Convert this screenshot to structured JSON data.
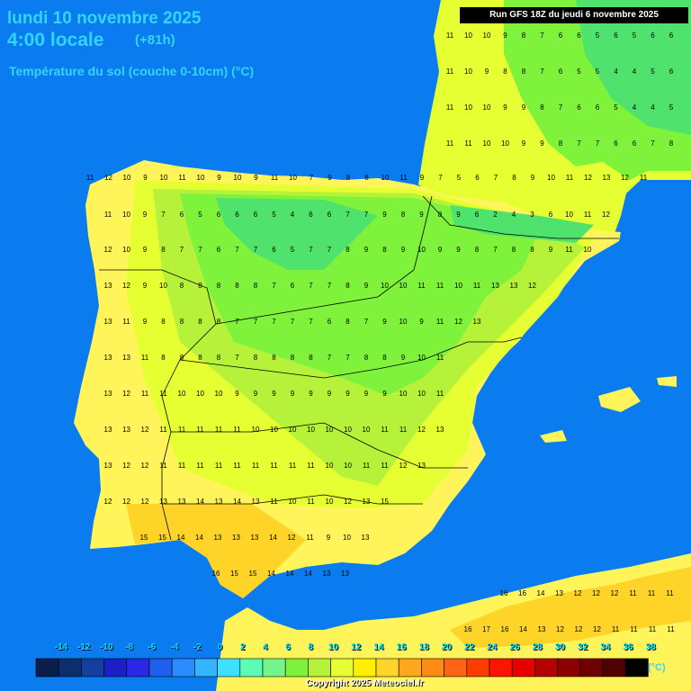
{
  "header": {
    "date_line": "lundi 10 novembre 2025",
    "time_line": "4:00 locale",
    "offset": "(+81h)",
    "variable": "Température du sol (couche 0-10cm) (°C)",
    "run": "Run GFS 18Z du jeudi 6 novembre 2025"
  },
  "footer": {
    "copyright": "Copyright 2025 Meteociel.fr",
    "unit": "(°C)"
  },
  "legend": {
    "labels": [
      "-14",
      "-12",
      "-10",
      "-8",
      "-6",
      "-4",
      "-2",
      "0",
      "2",
      "4",
      "6",
      "8",
      "10",
      "12",
      "14",
      "16",
      "18",
      "20",
      "22",
      "24",
      "26",
      "28",
      "30",
      "32",
      "34",
      "36",
      "38"
    ],
    "colors": [
      "#0a1e4a",
      "#0c2e6e",
      "#123fa0",
      "#1b1fc8",
      "#2a2ae6",
      "#1f5ff0",
      "#2a8cff",
      "#33b5ff",
      "#3fe0ff",
      "#5dfcb4",
      "#74f58a",
      "#7ff23c",
      "#b7f23a",
      "#e6ff33",
      "#fff000",
      "#ffd428",
      "#ffa81e",
      "#ff8a14",
      "#ff6414",
      "#ff3c00",
      "#ff1400",
      "#e60000",
      "#b40000",
      "#8c0000",
      "#6e0000",
      "#500000",
      "#000000"
    ]
  },
  "map": {
    "sea_color": "#0a7cf0",
    "land_colors": {
      "t4_6": "#4fe26c",
      "t7_8": "#7ff23c",
      "t9_10": "#b7f23a",
      "t11_12": "#e6ff33",
      "t13_14": "#fff55a",
      "t15_17": "#ffd428"
    },
    "value_rows": [
      {
        "y": 200,
        "x0": 100,
        "values": [
          "11",
          "12",
          "10",
          "9",
          "10",
          "11",
          "10",
          "9",
          "10",
          "9",
          "11",
          "10",
          "7",
          "9",
          "8",
          "8",
          "10",
          "11",
          "9",
          "7",
          "5",
          "6",
          "7",
          "8",
          "9",
          "10",
          "11",
          "12",
          "13",
          "12",
          "11"
        ]
      },
      {
        "y": 241,
        "x0": 120,
        "values": [
          "11",
          "10",
          "9",
          "7",
          "6",
          "5",
          "6",
          "6",
          "6",
          "5",
          "4",
          "6",
          "6",
          "7",
          "7",
          "9",
          "8",
          "9",
          "8",
          "9",
          "6",
          "2",
          "4",
          "3",
          "6",
          "10",
          "11",
          "12"
        ]
      },
      {
        "y": 280,
        "x0": 120,
        "values": [
          "12",
          "10",
          "9",
          "8",
          "7",
          "7",
          "6",
          "7",
          "7",
          "6",
          "5",
          "7",
          "7",
          "8",
          "9",
          "8",
          "9",
          "10",
          "9",
          "9",
          "8",
          "7",
          "8",
          "8",
          "9",
          "11",
          "10"
        ]
      },
      {
        "y": 320,
        "x0": 120,
        "values": [
          "13",
          "12",
          "9",
          "10",
          "8",
          "8",
          "8",
          "8",
          "8",
          "7",
          "6",
          "7",
          "7",
          "8",
          "9",
          "10",
          "10",
          "11",
          "11",
          "10",
          "11",
          "13",
          "13",
          "12"
        ]
      },
      {
        "y": 360,
        "x0": 120,
        "values": [
          "13",
          "11",
          "9",
          "8",
          "8",
          "8",
          "8",
          "7",
          "7",
          "7",
          "7",
          "7",
          "6",
          "8",
          "7",
          "9",
          "10",
          "9",
          "11",
          "12",
          "13"
        ]
      },
      {
        "y": 400,
        "x0": 120,
        "values": [
          "13",
          "13",
          "11",
          "8",
          "8",
          "8",
          "8",
          "7",
          "8",
          "8",
          "8",
          "8",
          "7",
          "7",
          "8",
          "8",
          "9",
          "10",
          "11"
        ]
      },
      {
        "y": 440,
        "x0": 120,
        "values": [
          "13",
          "12",
          "11",
          "11",
          "10",
          "10",
          "10",
          "9",
          "9",
          "9",
          "9",
          "9",
          "9",
          "9",
          "9",
          "9",
          "10",
          "10",
          "11"
        ]
      },
      {
        "y": 480,
        "x0": 120,
        "values": [
          "13",
          "13",
          "12",
          "11",
          "11",
          "11",
          "11",
          "11",
          "10",
          "10",
          "10",
          "10",
          "10",
          "10",
          "10",
          "11",
          "11",
          "12",
          "13"
        ]
      },
      {
        "y": 520,
        "x0": 120,
        "values": [
          "13",
          "12",
          "12",
          "11",
          "11",
          "11",
          "11",
          "11",
          "11",
          "11",
          "11",
          "11",
          "10",
          "10",
          "11",
          "11",
          "12",
          "13"
        ]
      },
      {
        "y": 560,
        "x0": 120,
        "values": [
          "12",
          "12",
          "12",
          "13",
          "13",
          "14",
          "13",
          "14",
          "13",
          "11",
          "10",
          "11",
          "10",
          "12",
          "13",
          "15"
        ]
      },
      {
        "y": 600,
        "x0": 160,
        "values": [
          "15",
          "15",
          "14",
          "14",
          "13",
          "13",
          "13",
          "14",
          "12",
          "11",
          "9",
          "10",
          "13"
        ]
      },
      {
        "y": 640,
        "x0": 240,
        "values": [
          "16",
          "15",
          "15",
          "14",
          "14",
          "14",
          "13",
          "13"
        ]
      },
      {
        "y": 662,
        "x0": 560,
        "values": [
          "16",
          "16",
          "14",
          "13",
          "12",
          "12",
          "12",
          "11",
          "11",
          "11"
        ]
      },
      {
        "y": 702,
        "x0": 520,
        "values": [
          "16",
          "17",
          "16",
          "14",
          "13",
          "12",
          "12",
          "12",
          "11",
          "11",
          "11",
          "11"
        ]
      }
    ],
    "north_rows": [
      {
        "y": 42,
        "x0": 500,
        "values": [
          "11",
          "10",
          "10",
          "9",
          "8",
          "7",
          "6",
          "6",
          "5",
          "6",
          "5",
          "6",
          "6"
        ]
      },
      {
        "y": 82,
        "x0": 500,
        "values": [
          "11",
          "10",
          "9",
          "8",
          "8",
          "7",
          "6",
          "5",
          "5",
          "4",
          "4",
          "5",
          "6"
        ]
      },
      {
        "y": 122,
        "x0": 500,
        "values": [
          "11",
          "10",
          "10",
          "9",
          "9",
          "8",
          "7",
          "6",
          "6",
          "5",
          "4",
          "4",
          "5"
        ]
      },
      {
        "y": 162,
        "x0": 500,
        "values": [
          "11",
          "11",
          "10",
          "10",
          "9",
          "9",
          "8",
          "7",
          "7",
          "6",
          "6",
          "7",
          "8"
        ]
      }
    ]
  }
}
